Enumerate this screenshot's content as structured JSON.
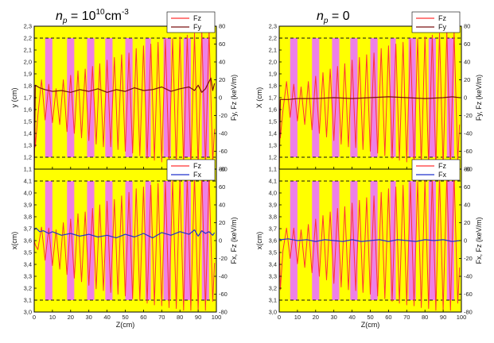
{
  "chart_data": [
    {
      "id": "top-left",
      "type": "line",
      "title": {
        "var": "n",
        "sub": "p",
        "rel": " = 10",
        "sup": "10",
        "unit": "cm",
        "unit_sup": "-3"
      },
      "xlabel": "",
      "ylabel_left": "y (cm)",
      "ylabel_right": "Fy, Fz (keV/m)",
      "xlim": [
        0,
        100
      ],
      "ylim_left": [
        1.1,
        2.3
      ],
      "ylim_right": [
        -80,
        80
      ],
      "xticks": [
        "0",
        "10",
        "20",
        "30",
        "40",
        "50",
        "60",
        "70",
        "80",
        "90",
        "100"
      ],
      "yticks_left": [
        "1,1",
        "1,2",
        "1,3",
        "1,4",
        "1,5",
        "1,6",
        "1,7",
        "1,8",
        "1,9",
        "2,0",
        "2,1",
        "2,2",
        "2,3"
      ],
      "yticks_right": [
        "-80",
        "-60",
        "-40",
        "-20",
        "0",
        "20",
        "40",
        "60",
        "80"
      ],
      "dashed_y_left": [
        1.2,
        2.2
      ],
      "pink_bands_x": [
        [
          6,
          10
        ],
        [
          18,
          22
        ],
        [
          29,
          33
        ],
        [
          39,
          43
        ],
        [
          50,
          54
        ],
        [
          61,
          64
        ],
        [
          71,
          75
        ],
        [
          82,
          86
        ],
        [
          92,
          96
        ]
      ],
      "legend": {
        "position": "top-right",
        "entries": [
          {
            "label": "Fz",
            "color": "#ff3333"
          },
          {
            "label": "Fy",
            "color": "#7a1010"
          }
        ]
      },
      "series": [
        {
          "name": "Fz",
          "axis": "right",
          "color": "#ff3333",
          "x": [
            0,
            0.6,
            2,
            4,
            6,
            8,
            10,
            12,
            14,
            16,
            18,
            20,
            22,
            24,
            26,
            28,
            30,
            32,
            34,
            36,
            38,
            40,
            42,
            44,
            46,
            48,
            50,
            52,
            54,
            56,
            58,
            60,
            62,
            64,
            66,
            68,
            70,
            72,
            74,
            76,
            78,
            80,
            82,
            84,
            86,
            88,
            90,
            92,
            94,
            96,
            98,
            99
          ],
          "values": [
            0,
            -55,
            -20,
            20,
            -25,
            15,
            -28,
            10,
            -30,
            20,
            -38,
            25,
            -40,
            30,
            -45,
            32,
            -48,
            35,
            -52,
            38,
            -55,
            42,
            -55,
            45,
            -58,
            48,
            -60,
            50,
            -62,
            55,
            -65,
            58,
            -68,
            60,
            -70,
            62,
            -72,
            65,
            -73,
            66,
            -75,
            68,
            -76,
            70,
            -78,
            72,
            -78,
            74,
            -78,
            75,
            -72,
            -35
          ]
        },
        {
          "name": "Fy",
          "axis": "right",
          "color": "#7a1010",
          "x": [
            0,
            0.6,
            3,
            6,
            10,
            15,
            20,
            25,
            30,
            35,
            40,
            45,
            50,
            55,
            60,
            65,
            70,
            75,
            80,
            85,
            88,
            90,
            92,
            94,
            96,
            97,
            98,
            99
          ],
          "values": [
            -80,
            14,
            11,
            9,
            7,
            8,
            6,
            9,
            7,
            10,
            6,
            9,
            7,
            11,
            8,
            9,
            12,
            7,
            10,
            12,
            8,
            14,
            6,
            10,
            18,
            22,
            8,
            16
          ]
        }
      ]
    },
    {
      "id": "top-right",
      "type": "line",
      "title": {
        "var": "n",
        "sub": "p",
        "rel": " = 0",
        "sup": "",
        "unit": "",
        "unit_sup": ""
      },
      "xlabel": "",
      "ylabel_left": "X (cm)",
      "ylabel_right": "Fy, Fz (keV/m)",
      "xlim": [
        0,
        100
      ],
      "ylim_left": [
        1.1,
        2.3
      ],
      "ylim_right": [
        -80,
        80
      ],
      "xticks": [
        "0",
        "10",
        "20",
        "30",
        "40",
        "50",
        "60",
        "70",
        "80",
        "90",
        "100"
      ],
      "yticks_left": [
        "1,1",
        "1,2",
        "1,3",
        "1,4",
        "1,5",
        "1,6",
        "1,7",
        "1,8",
        "1,9",
        "2,0",
        "2,1",
        "2,2",
        "2,3"
      ],
      "yticks_right": [
        "-80",
        "-60",
        "-40",
        "-20",
        "0",
        "20",
        "40",
        "60",
        "80"
      ],
      "dashed_y_left": [
        1.2,
        2.2
      ],
      "pink_bands_x": [
        [
          6,
          10
        ],
        [
          18,
          22
        ],
        [
          29,
          33
        ],
        [
          39,
          43
        ],
        [
          50,
          54
        ],
        [
          61,
          64
        ],
        [
          71,
          75
        ],
        [
          82,
          86
        ],
        [
          92,
          96
        ]
      ],
      "legend": {
        "position": "top-right",
        "entries": [
          {
            "label": "Fz",
            "color": "#ff3333"
          },
          {
            "label": "Fy",
            "color": "#7a1010"
          }
        ]
      },
      "series": [
        {
          "name": "Fz",
          "axis": "right",
          "color": "#ff3333",
          "x": [
            0,
            0.6,
            2,
            4,
            6,
            8,
            10,
            12,
            14,
            16,
            18,
            20,
            22,
            24,
            26,
            28,
            30,
            32,
            34,
            36,
            38,
            40,
            42,
            44,
            46,
            48,
            50,
            52,
            54,
            56,
            58,
            60,
            62,
            64,
            66,
            68,
            70,
            72,
            74,
            76,
            78,
            80,
            82,
            84,
            86,
            88,
            90,
            92,
            94,
            96,
            98,
            99
          ],
          "values": [
            0,
            -45,
            -15,
            18,
            -22,
            15,
            -26,
            12,
            -30,
            18,
            -36,
            24,
            -40,
            28,
            -44,
            32,
            -48,
            35,
            -52,
            38,
            -55,
            42,
            -56,
            45,
            -58,
            48,
            -60,
            50,
            -62,
            55,
            -65,
            58,
            -68,
            60,
            -70,
            62,
            -72,
            65,
            -73,
            66,
            -75,
            68,
            -76,
            70,
            -78,
            72,
            -78,
            75,
            -78,
            74,
            -70,
            -30
          ]
        },
        {
          "name": "Fy",
          "axis": "right",
          "color": "#7a1010",
          "x": [
            0,
            0.6,
            5,
            10,
            20,
            30,
            40,
            50,
            60,
            70,
            80,
            90,
            95,
            99
          ],
          "values": [
            -80,
            -2,
            -2,
            -1,
            -1,
            0,
            -1,
            0,
            1,
            0,
            -1,
            0,
            1,
            0
          ]
        }
      ]
    },
    {
      "id": "bottom-left",
      "type": "line",
      "xlabel": "Z(cm)",
      "ylabel_left": "x(cm)",
      "ylabel_right": "Fx, Fz (keV/m)",
      "xlim": [
        0,
        100
      ],
      "ylim_left": [
        3.0,
        4.2
      ],
      "ylim_right": [
        -80,
        80
      ],
      "xticks": [
        "0",
        "10",
        "20",
        "30",
        "40",
        "50",
        "60",
        "70",
        "80",
        "90",
        "100"
      ],
      "yticks_left": [
        "3,0",
        "3,1",
        "3,2",
        "3,3",
        "3,4",
        "3,5",
        "3,6",
        "3,7",
        "3,8",
        "3,9",
        "4,0",
        "4,1",
        "4,2"
      ],
      "yticks_right": [
        "-80",
        "-60",
        "-40",
        "-20",
        "0",
        "20",
        "40",
        "60",
        "80"
      ],
      "dashed_y_left": [
        3.1,
        4.1
      ],
      "pink_bands_x": [
        [
          6,
          10
        ],
        [
          18,
          22
        ],
        [
          29,
          33
        ],
        [
          39,
          43
        ],
        [
          50,
          54
        ],
        [
          61,
          64
        ],
        [
          71,
          75
        ],
        [
          82,
          86
        ],
        [
          92,
          96
        ]
      ],
      "legend": {
        "position": "top-right",
        "entries": [
          {
            "label": "Fz",
            "color": "#ff3333"
          },
          {
            "label": "Fx",
            "color": "#2233cc"
          }
        ]
      },
      "series": [
        {
          "name": "Fz",
          "axis": "right",
          "color": "#ff3333",
          "x": [
            0,
            0.6,
            2,
            4,
            6,
            8,
            10,
            12,
            14,
            16,
            18,
            20,
            22,
            24,
            26,
            28,
            30,
            32,
            34,
            36,
            38,
            40,
            42,
            44,
            46,
            48,
            50,
            52,
            54,
            56,
            58,
            60,
            62,
            64,
            66,
            68,
            70,
            72,
            74,
            76,
            78,
            80,
            82,
            84,
            86,
            88,
            90,
            92,
            94,
            96,
            98,
            99
          ],
          "values": [
            0,
            -5,
            -10,
            15,
            -22,
            14,
            -28,
            12,
            -32,
            20,
            -38,
            24,
            -42,
            30,
            -46,
            32,
            -50,
            36,
            -54,
            40,
            -56,
            44,
            -58,
            46,
            -60,
            50,
            -62,
            54,
            -65,
            58,
            -67,
            60,
            -70,
            62,
            -72,
            64,
            -73,
            66,
            -75,
            68,
            -76,
            70,
            -78,
            72,
            -78,
            74,
            -78,
            75,
            -78,
            74,
            -68,
            -25
          ]
        },
        {
          "name": "Fx",
          "axis": "right",
          "color": "#2233cc",
          "x": [
            0,
            1,
            3,
            5,
            8,
            10,
            15,
            20,
            25,
            30,
            35,
            40,
            45,
            50,
            55,
            60,
            65,
            70,
            75,
            80,
            85,
            88,
            90,
            92,
            94,
            96,
            98,
            99
          ],
          "values": [
            12,
            14,
            10,
            11,
            8,
            10,
            6,
            8,
            5,
            7,
            4,
            6,
            3,
            7,
            4,
            8,
            3,
            9,
            6,
            10,
            7,
            12,
            5,
            11,
            8,
            10,
            6,
            9
          ]
        }
      ]
    },
    {
      "id": "bottom-right",
      "type": "line",
      "xlabel": "Z(cm)",
      "ylabel_left": "x(cm)",
      "ylabel_right": "Fx, Fz (keV/m)",
      "xlim": [
        0,
        100
      ],
      "ylim_left": [
        3.0,
        4.2
      ],
      "ylim_right": [
        -80,
        80
      ],
      "xticks": [
        "0",
        "10",
        "20",
        "30",
        "40",
        "50",
        "60",
        "70",
        "80",
        "90",
        "100"
      ],
      "yticks_left": [
        "3,0",
        "3,1",
        "3,2",
        "3,3",
        "3,4",
        "3,5",
        "3,6",
        "3,7",
        "3,8",
        "3,9",
        "4,0",
        "4,1",
        "4,2"
      ],
      "yticks_right": [
        "-80",
        "-60",
        "-40",
        "-20",
        "0",
        "20",
        "40",
        "60",
        "80"
      ],
      "dashed_y_left": [
        3.1,
        4.1
      ],
      "pink_bands_x": [
        [
          6,
          10
        ],
        [
          18,
          22
        ],
        [
          29,
          33
        ],
        [
          39,
          43
        ],
        [
          50,
          54
        ],
        [
          61,
          64
        ],
        [
          71,
          75
        ],
        [
          82,
          86
        ],
        [
          92,
          96
        ]
      ],
      "legend": {
        "position": "top-right",
        "entries": [
          {
            "label": "Fz",
            "color": "#ff3333"
          },
          {
            "label": "Fx",
            "color": "#2233cc"
          }
        ]
      },
      "series": [
        {
          "name": "Fz",
          "axis": "right",
          "color": "#ff3333",
          "x": [
            0,
            0.6,
            2,
            4,
            6,
            8,
            10,
            12,
            14,
            16,
            18,
            20,
            22,
            24,
            26,
            28,
            30,
            32,
            34,
            36,
            38,
            40,
            42,
            44,
            46,
            48,
            50,
            52,
            54,
            56,
            58,
            60,
            62,
            64,
            66,
            68,
            70,
            72,
            74,
            76,
            78,
            80,
            82,
            84,
            86,
            88,
            90,
            92,
            94,
            96,
            98,
            99
          ],
          "values": [
            0,
            -55,
            -12,
            14,
            -20,
            14,
            -26,
            12,
            -30,
            18,
            -36,
            24,
            -40,
            28,
            -44,
            32,
            -48,
            36,
            -52,
            38,
            -55,
            42,
            -56,
            45,
            -58,
            48,
            -60,
            50,
            -62,
            54,
            -65,
            58,
            -68,
            60,
            -70,
            62,
            -72,
            65,
            -73,
            66,
            -75,
            68,
            -76,
            70,
            -78,
            72,
            -78,
            74,
            -78,
            75,
            -70,
            -30
          ]
        },
        {
          "name": "Fx",
          "axis": "right",
          "color": "#2233cc",
          "x": [
            0,
            1,
            5,
            10,
            15,
            20,
            25,
            30,
            35,
            40,
            45,
            50,
            55,
            60,
            65,
            70,
            75,
            80,
            85,
            90,
            95,
            99
          ],
          "values": [
            2,
            1,
            2,
            0,
            1,
            -1,
            1,
            0,
            -1,
            1,
            -1,
            0,
            1,
            -1,
            1,
            0,
            -1,
            1,
            0,
            1,
            -1,
            0
          ]
        }
      ]
    }
  ]
}
